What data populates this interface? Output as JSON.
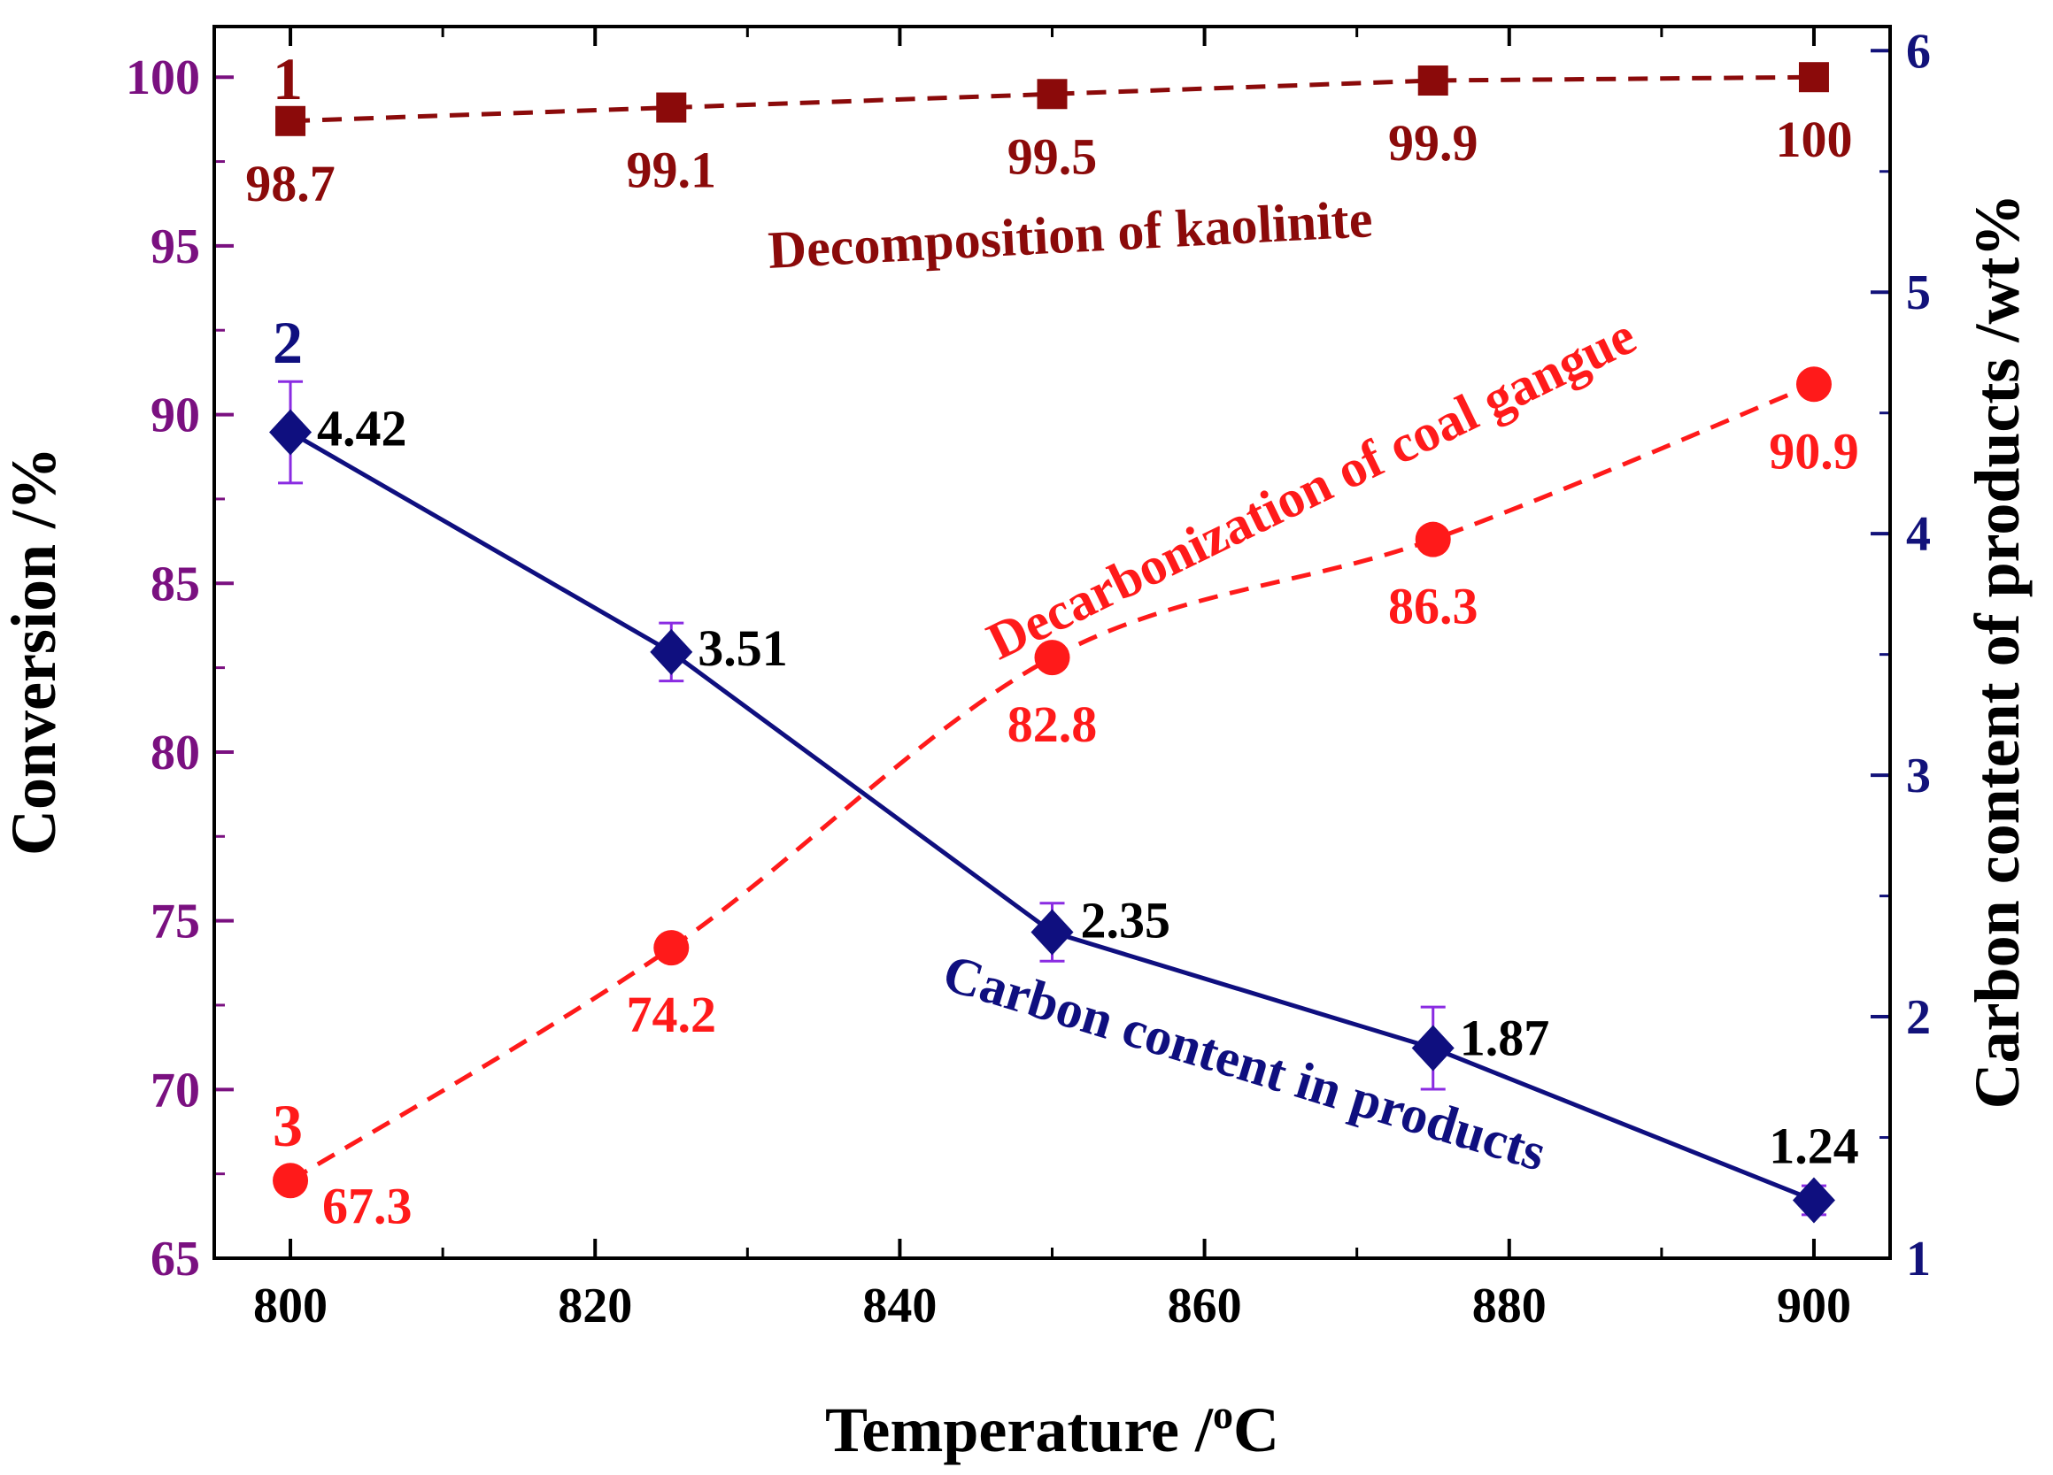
{
  "chart_data": {
    "type": "line",
    "title": "",
    "xlabel_text": "Temperature /",
    "xlabel_sup": "o",
    "xlabel_unit": "C",
    "xlabel": "Temperature /oC",
    "ylabel_left": "Conversion /%",
    "ylabel_right": "Carbon content of products /wt%",
    "x_ticks": [
      "800",
      "820",
      "840",
      "860",
      "880",
      "900"
    ],
    "y_left_ticks": [
      "65",
      "70",
      "75",
      "80",
      "85",
      "90",
      "95",
      "100"
    ],
    "y_right_ticks": [
      "1",
      "2",
      "3",
      "4",
      "5",
      "6"
    ],
    "xlim": [
      795,
      905
    ],
    "ylim_left": [
      65,
      101.5
    ],
    "ylim_right": [
      1,
      6.1
    ],
    "x": [
      800,
      825,
      850,
      875,
      900
    ],
    "series": [
      {
        "id": "kaolinite",
        "number": "1",
        "name": "Decomposition of kaolinite",
        "axis": "left",
        "values": [
          98.7,
          99.1,
          99.5,
          99.9,
          100
        ],
        "labels": [
          "98.7",
          "99.1",
          "99.5",
          "99.9",
          "100"
        ],
        "marker": "square",
        "line": "dashed",
        "color": "#8b0a0a"
      },
      {
        "id": "carbon",
        "number": "2",
        "name": "Carbon content in products",
        "axis": "right",
        "values": [
          4.42,
          3.51,
          2.35,
          1.87,
          1.24
        ],
        "labels": [
          "4.42",
          "3.51",
          "2.35",
          "1.87",
          "1.24"
        ],
        "error": [
          0.21,
          0.12,
          0.12,
          0.17,
          0.06
        ],
        "marker": "diamond",
        "line": "solid",
        "color": "#0f0f7f"
      },
      {
        "id": "decarbonization",
        "number": "3",
        "name": "Decarbonization of coal gangue",
        "axis": "left",
        "values": [
          67.3,
          74.2,
          82.8,
          86.3,
          90.9
        ],
        "labels": [
          "67.3",
          "74.2",
          "82.8",
          "86.3",
          "90.9"
        ],
        "marker": "circle",
        "line": "dashed",
        "color": "#ff1a1a"
      }
    ],
    "colors": {
      "left_axis": "#7a1080",
      "right_axis": "#12127a",
      "labels_dark": "#000000",
      "error_bar": "#8a2be2"
    }
  }
}
